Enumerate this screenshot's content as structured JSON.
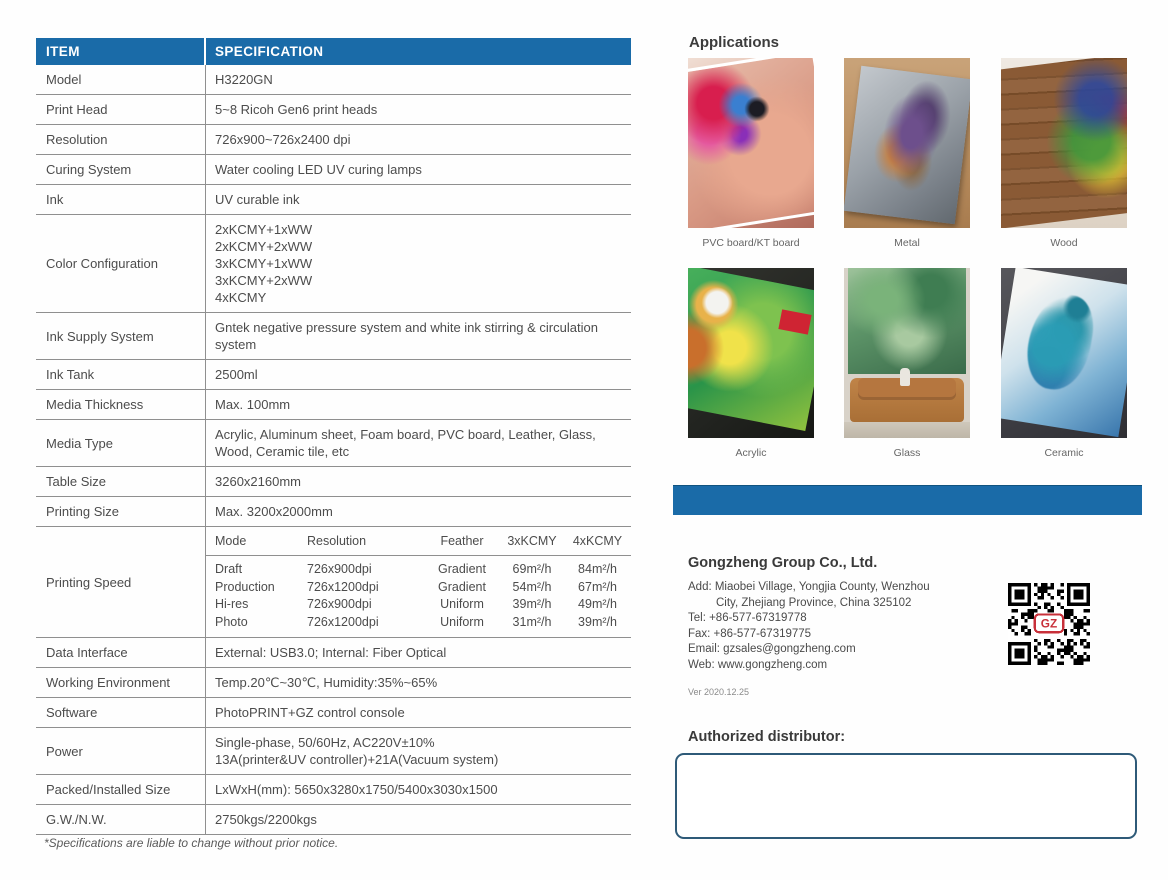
{
  "colors": {
    "accent_blue": "#1a6ba8",
    "table_line": "#8f8f8f",
    "tag_red": "#cf2433"
  },
  "spec_table": {
    "headers": [
      "ITEM",
      "SPECIFICATION"
    ],
    "rows": [
      {
        "item": "Model",
        "lines": [
          "H3220GN"
        ]
      },
      {
        "item": "Print Head",
        "lines": [
          "5~8 Ricoh Gen6 print heads"
        ]
      },
      {
        "item": "Resolution",
        "lines": [
          "726x900~726x2400 dpi"
        ]
      },
      {
        "item": "Curing System",
        "lines": [
          "Water cooling LED UV curing lamps"
        ]
      },
      {
        "item": "Ink",
        "lines": [
          "UV curable ink"
        ]
      },
      {
        "item": "Color Configuration",
        "lines": [
          "2xKCMY+1xWW",
          "2xKCMY+2xWW",
          "3xKCMY+1xWW",
          "3xKCMY+2xWW",
          "4xKCMY"
        ]
      },
      {
        "item": "Ink Supply System",
        "lines": [
          "Gntek negative pressure system and white ink stirring & circulation system"
        ]
      },
      {
        "item": "Ink Tank",
        "lines": [
          "2500ml"
        ]
      },
      {
        "item": "Media Thickness",
        "lines": [
          "Max. 100mm"
        ]
      },
      {
        "item": "Media Type",
        "lines": [
          "Acrylic, Aluminum sheet, Foam board, PVC board, Leather, Glass, Wood, Ceramic tile, etc"
        ]
      },
      {
        "item": "Table Size",
        "lines": [
          "3260x2160mm"
        ]
      },
      {
        "item": "Printing Size",
        "lines": [
          "Max. 3200x2000mm"
        ]
      },
      {
        "item": "Printing Speed",
        "speed_table": true
      },
      {
        "item": "Data Interface",
        "lines": [
          "External: USB3.0; Internal: Fiber Optical"
        ]
      },
      {
        "item": "Working Environment",
        "lines": [
          "Temp.20℃~30℃, Humidity:35%~65%"
        ]
      },
      {
        "item": "Software",
        "lines": [
          "PhotoPRINT+GZ control console"
        ]
      },
      {
        "item": "Power",
        "lines": [
          "Single-phase, 50/60Hz, AC220V±10%",
          "13A(printer&UV controller)+21A(Vacuum system)"
        ]
      },
      {
        "item": "Packed/Installed Size",
        "lines": [
          "LxWxH(mm): 5650x3280x1750/5400x3030x1500"
        ]
      },
      {
        "item": "G.W./N.W.",
        "lines": [
          "2750kgs/2200kgs"
        ]
      }
    ]
  },
  "speed_table": {
    "headers": [
      "Mode",
      "Resolution",
      "Feather",
      "3xKCMY",
      "4xKCMY"
    ],
    "rows": [
      [
        "Draft",
        "726x900dpi",
        "Gradient",
        "69m²/h",
        "84m²/h"
      ],
      [
        "Production",
        "726x1200dpi",
        "Gradient",
        "54m²/h",
        "67m²/h"
      ],
      [
        "Hi-res",
        "726x900dpi",
        "Uniform",
        "39m²/h",
        "49m²/h"
      ],
      [
        "Photo",
        "726x1200dpi",
        "Uniform",
        "31m²/h",
        "39m²/h"
      ]
    ]
  },
  "footnote": "*Specifications are liable to change without prior notice.",
  "applications": {
    "title": "Applications",
    "items": [
      {
        "label": "PVC board/KT board",
        "art": "pvc"
      },
      {
        "label": "Metal",
        "art": "metal"
      },
      {
        "label": "Wood",
        "art": "wood"
      },
      {
        "label": "Acrylic",
        "art": "acrylic"
      },
      {
        "label": "Glass",
        "art": "glass"
      },
      {
        "label": "Ceramic",
        "art": "ceramic"
      }
    ]
  },
  "company": {
    "name": "Gongzheng Group Co., Ltd.",
    "lines": [
      "Add: Miaobei Village, Yongjia County, Wenzhou",
      "City, Zhejiang Province, China 325102",
      "Tel: +86-577-67319778",
      "Fax: +86-577-67319775",
      "Email: gzsales@gongzheng.com",
      "Web: www.gongzheng.com"
    ],
    "version": "Ver 2020.12.25",
    "qr_logo": "GZ"
  },
  "distributor": {
    "label": "Authorized distributor:"
  }
}
